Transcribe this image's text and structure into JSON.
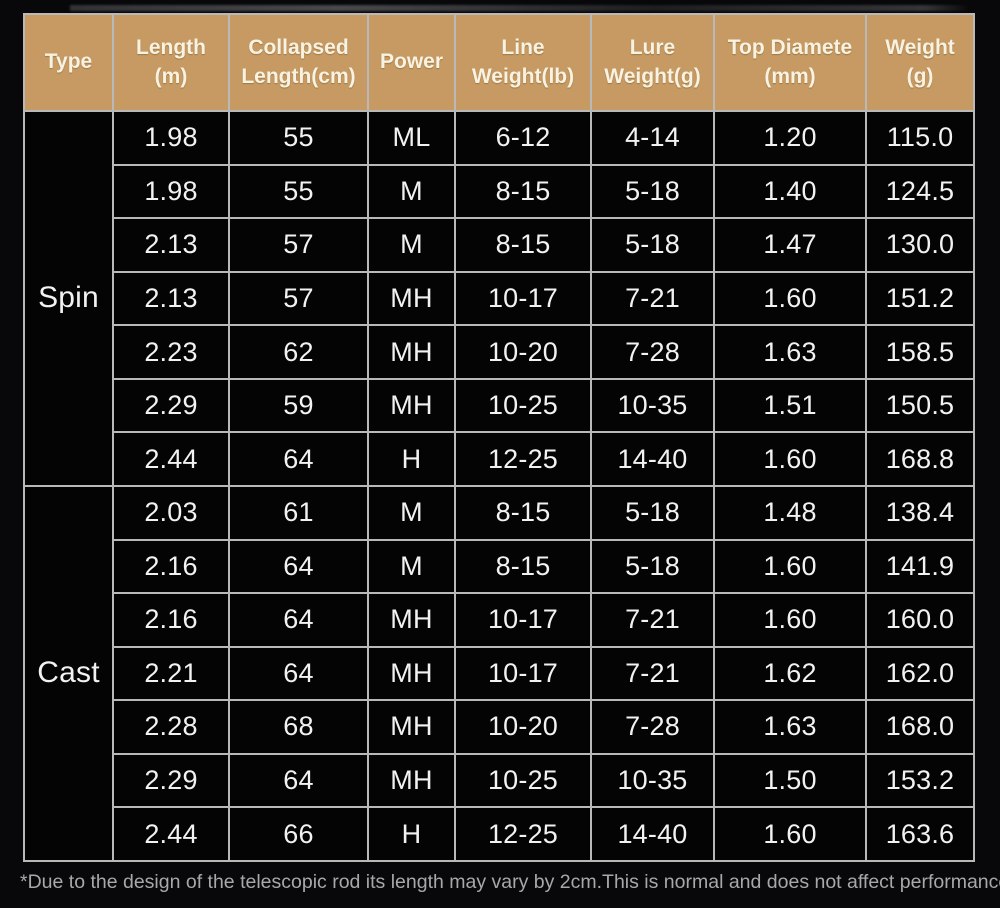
{
  "colors": {
    "page_background": "#08080a",
    "header_background": "#c69a62",
    "header_text": "#f8f2e2",
    "cell_background": "#040405",
    "cell_text": "#f2f2f2",
    "grid_line": "#b9b9b9",
    "footnote_text": "#a8a8a8"
  },
  "table": {
    "columns": [
      {
        "id": "type",
        "label_lines": [
          "Type"
        ]
      },
      {
        "id": "length_m",
        "label_lines": [
          "Length",
          "(m)"
        ]
      },
      {
        "id": "collapsed_length",
        "label_lines": [
          "Collapsed",
          "Length(cm)"
        ]
      },
      {
        "id": "power",
        "label_lines": [
          "Power"
        ]
      },
      {
        "id": "line_weight",
        "label_lines": [
          "Line",
          "Weight(lb)"
        ]
      },
      {
        "id": "lure_weight",
        "label_lines": [
          "Lure",
          "Weight(g)"
        ]
      },
      {
        "id": "top_diameter",
        "label_lines": [
          "Top Diamete",
          "(mm)"
        ]
      },
      {
        "id": "weight_g",
        "label_lines": [
          "Weight",
          "(g)"
        ]
      }
    ],
    "groups": [
      {
        "type": "Spin",
        "rows": [
          [
            "1.98",
            "55",
            "ML",
            "6-12",
            "4-14",
            "1.20",
            "115.0"
          ],
          [
            "1.98",
            "55",
            "M",
            "8-15",
            "5-18",
            "1.40",
            "124.5"
          ],
          [
            "2.13",
            "57",
            "M",
            "8-15",
            "5-18",
            "1.47",
            "130.0"
          ],
          [
            "2.13",
            "57",
            "MH",
            "10-17",
            "7-21",
            "1.60",
            "151.2"
          ],
          [
            "2.23",
            "62",
            "MH",
            "10-20",
            "7-28",
            "1.63",
            "158.5"
          ],
          [
            "2.29",
            "59",
            "MH",
            "10-25",
            "10-35",
            "1.51",
            "150.5"
          ],
          [
            "2.44",
            "64",
            "H",
            "12-25",
            "14-40",
            "1.60",
            "168.8"
          ]
        ]
      },
      {
        "type": "Cast",
        "rows": [
          [
            "2.03",
            "61",
            "M",
            "8-15",
            "5-18",
            "1.48",
            "138.4"
          ],
          [
            "2.16",
            "64",
            "M",
            "8-15",
            "5-18",
            "1.60",
            "141.9"
          ],
          [
            "2.16",
            "64",
            "MH",
            "10-17",
            "7-21",
            "1.60",
            "160.0"
          ],
          [
            "2.21",
            "64",
            "MH",
            "10-17",
            "7-21",
            "1.62",
            "162.0"
          ],
          [
            "2.28",
            "68",
            "MH",
            "10-20",
            "7-28",
            "1.63",
            "168.0"
          ],
          [
            "2.29",
            "64",
            "MH",
            "10-25",
            "10-35",
            "1.50",
            "153.2"
          ],
          [
            "2.44",
            "66",
            "H",
            "12-25",
            "14-40",
            "1.60",
            "163.6"
          ]
        ]
      }
    ]
  },
  "footnote": "*Due to the design of the telescopic rod its length may vary by 2cm.This is normal and does not affect performance.",
  "chart_data": {
    "type": "table",
    "title": "",
    "columns": [
      "Type",
      "Length (m)",
      "Collapsed Length(cm)",
      "Power",
      "Line Weight(lb)",
      "Lure Weight(g)",
      "Top Diamete (mm)",
      "Weight (g)"
    ],
    "rows": [
      [
        "Spin",
        "1.98",
        "55",
        "ML",
        "6-12",
        "4-14",
        "1.20",
        "115.0"
      ],
      [
        "Spin",
        "1.98",
        "55",
        "M",
        "8-15",
        "5-18",
        "1.40",
        "124.5"
      ],
      [
        "Spin",
        "2.13",
        "57",
        "M",
        "8-15",
        "5-18",
        "1.47",
        "130.0"
      ],
      [
        "Spin",
        "2.13",
        "57",
        "MH",
        "10-17",
        "7-21",
        "1.60",
        "151.2"
      ],
      [
        "Spin",
        "2.23",
        "62",
        "MH",
        "10-20",
        "7-28",
        "1.63",
        "158.5"
      ],
      [
        "Spin",
        "2.29",
        "59",
        "MH",
        "10-25",
        "10-35",
        "1.51",
        "150.5"
      ],
      [
        "Spin",
        "2.44",
        "64",
        "H",
        "12-25",
        "14-40",
        "1.60",
        "168.8"
      ],
      [
        "Cast",
        "2.03",
        "61",
        "M",
        "8-15",
        "5-18",
        "1.48",
        "138.4"
      ],
      [
        "Cast",
        "2.16",
        "64",
        "M",
        "8-15",
        "5-18",
        "1.60",
        "141.9"
      ],
      [
        "Cast",
        "2.16",
        "64",
        "MH",
        "10-17",
        "7-21",
        "1.60",
        "160.0"
      ],
      [
        "Cast",
        "2.21",
        "64",
        "MH",
        "10-17",
        "7-21",
        "1.62",
        "162.0"
      ],
      [
        "Cast",
        "2.28",
        "68",
        "MH",
        "10-20",
        "7-28",
        "1.63",
        "168.0"
      ],
      [
        "Cast",
        "2.29",
        "64",
        "MH",
        "10-25",
        "10-35",
        "1.50",
        "153.2"
      ],
      [
        "Cast",
        "2.44",
        "66",
        "H",
        "12-25",
        "14-40",
        "1.60",
        "163.6"
      ]
    ],
    "notes": "*Due to the design of the telescopic rod its length may vary by 2cm.This is normal and does not affect performance."
  }
}
